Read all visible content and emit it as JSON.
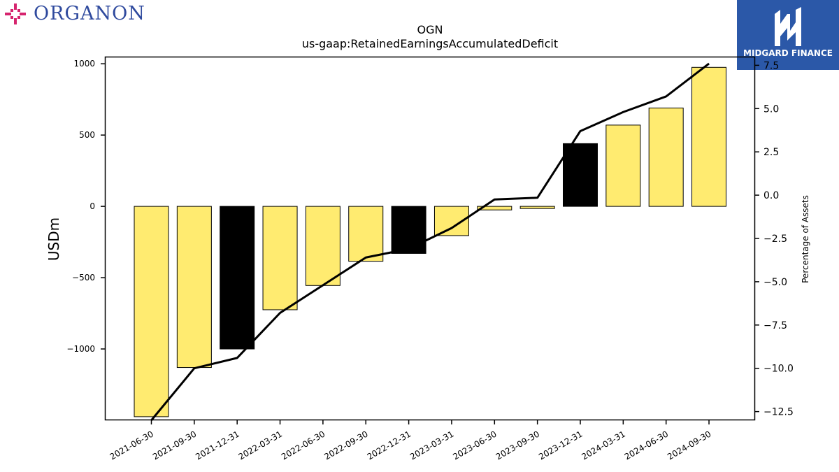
{
  "branding": {
    "left_logo_text": "ORGANON",
    "left_logo_color": "#2f4a9e",
    "left_logo_mark_color": "#d6246e",
    "right_logo_text": "MIDGARD FINANCE",
    "right_logo_bg": "#2b58a8"
  },
  "chart_data": {
    "type": "bar",
    "title": "OGN",
    "subtitle": "us-gaap:RetainedEarningsAccumulatedDeficit",
    "ylabel": "USDm",
    "y2label": "Percentage of Assets",
    "categories": [
      "2021-06-30",
      "2021-09-30",
      "2021-12-31",
      "2022-03-31",
      "2022-06-30",
      "2022-09-30",
      "2022-12-31",
      "2023-03-31",
      "2023-06-30",
      "2023-09-30",
      "2023-12-31",
      "2024-03-31",
      "2024-06-30",
      "2024-09-30"
    ],
    "series": [
      {
        "type": "bar",
        "values": [
          -1475,
          -1130,
          -1000,
          -725,
          -555,
          -385,
          -330,
          -205,
          -25,
          -15,
          440,
          570,
          690,
          975
        ],
        "highlight": [
          false,
          false,
          true,
          false,
          false,
          false,
          true,
          false,
          false,
          false,
          true,
          false,
          false,
          false
        ]
      },
      {
        "type": "line",
        "axis": "right",
        "values": [
          -13.0,
          -10.0,
          -9.4,
          -6.8,
          -5.2,
          -3.6,
          -3.1,
          -1.9,
          -0.25,
          -0.15,
          3.7,
          4.8,
          5.7,
          7.6
        ]
      }
    ],
    "ylim": [
      -1500,
      1050
    ],
    "y2lim": [
      -13.0,
      8.0
    ],
    "yticks": [
      -1000,
      -500,
      0,
      500,
      1000
    ],
    "ytick_labels": [
      "−1000",
      "−500",
      "0",
      "500",
      "1000"
    ],
    "y2ticks": [
      -12.5,
      -10.0,
      -7.5,
      -5.0,
      -2.5,
      0.0,
      2.5,
      5.0,
      7.5
    ],
    "y2tick_labels": [
      "−12.5",
      "−10.0",
      "−7.5",
      "−5.0",
      "−2.5",
      "0.0",
      "2.5",
      "5.0",
      "7.5"
    ],
    "grid": false,
    "colors": {
      "bar": "#ffeb70",
      "bar_highlight": "#000000",
      "line": "#000000",
      "axis": "#000000"
    }
  }
}
